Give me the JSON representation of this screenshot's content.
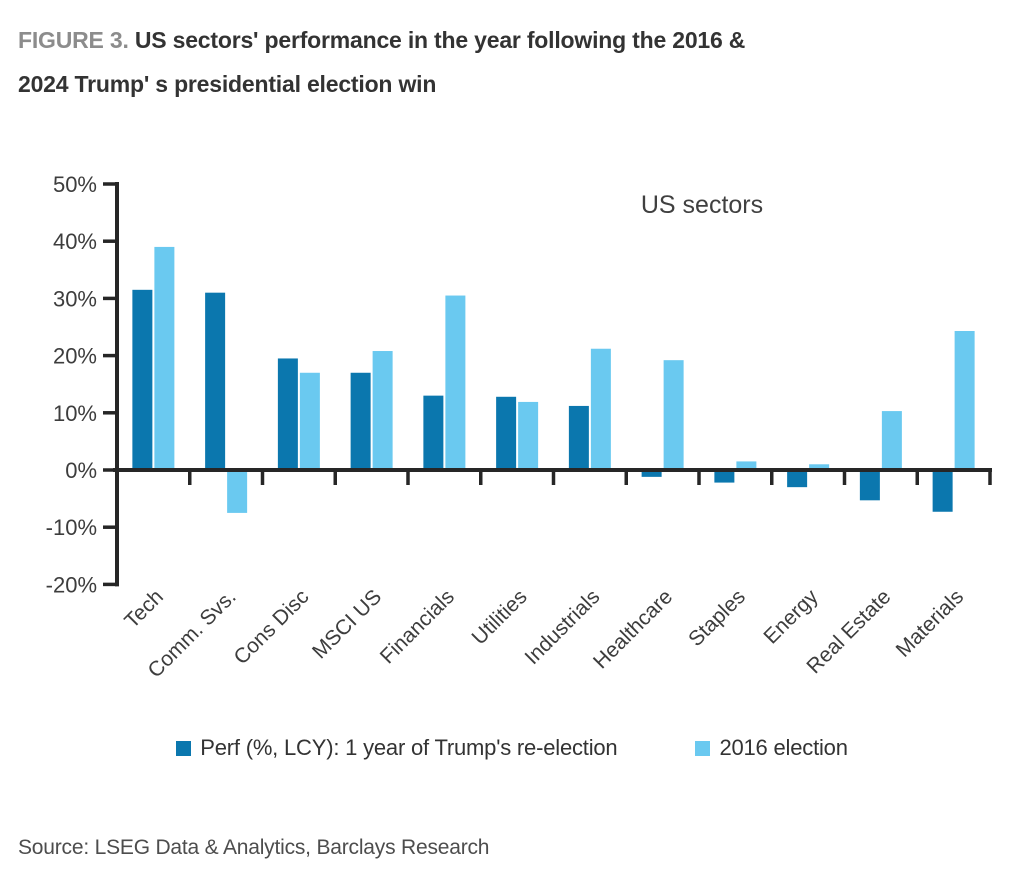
{
  "header": {
    "figure_label": "FIGURE 3.",
    "title_line1": "US sectors' performance in the year following the 2016 &",
    "title_line2": "2024 Trump' s presidential election win"
  },
  "chart_data": {
    "type": "bar",
    "title": "US sectors",
    "categories": [
      "Tech",
      "Comm. Svs.",
      "Cons Disc",
      "MSCI US",
      "Financials",
      "Utilities",
      "Industrials",
      "Healthcare",
      "Staples",
      "Energy",
      "Real Estate",
      "Materials"
    ],
    "series": [
      {
        "name": "Perf (%, LCY): 1 year of Trump's re-election",
        "color": "#0b77ae",
        "values": [
          31.5,
          31.0,
          19.5,
          17.0,
          13.0,
          12.8,
          11.2,
          -1.2,
          -2.2,
          -3.0,
          -5.3,
          -7.3
        ]
      },
      {
        "name": "2016 election",
        "color": "#6ac9f0",
        "values": [
          39.0,
          -7.5,
          17.0,
          20.8,
          30.5,
          11.9,
          21.2,
          19.2,
          1.5,
          1.0,
          10.3,
          24.3
        ]
      }
    ],
    "ylim": [
      -20,
      50
    ],
    "ytick_step": 10,
    "ytick_format": "percent",
    "xlabel": "",
    "ylabel": "",
    "grid": false,
    "legend_position": "bottom",
    "axis_color": "#262626",
    "tick_label_color": "#3d3d3d",
    "annotation_color": "#404040"
  },
  "footer": {
    "source": "Source: LSEG Data & Analytics, Barclays Research"
  }
}
